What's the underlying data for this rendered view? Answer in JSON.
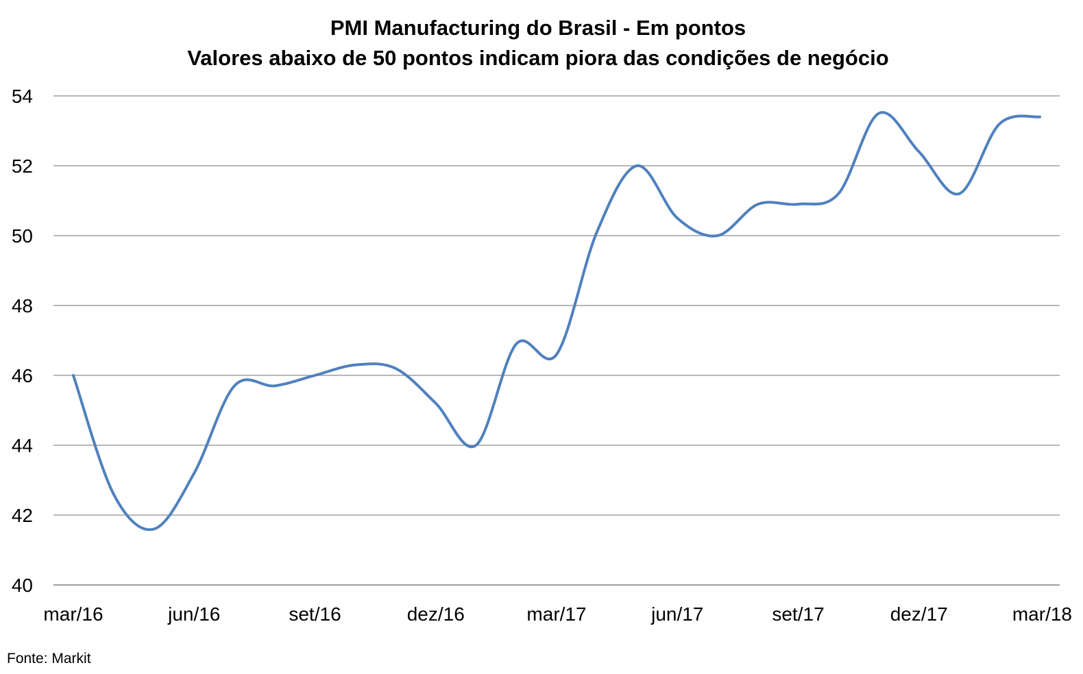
{
  "chart_data": {
    "type": "line",
    "title": "PMI Manufacturing do Brasil - Em pontos",
    "subtitle": "Valores abaixo de 50 pontos indicam piora das condições de negócio",
    "source": "Fonte: Markit",
    "xlabel": "",
    "ylabel": "",
    "ylim": [
      40,
      54
    ],
    "yticks": [
      40,
      42,
      44,
      46,
      48,
      50,
      52,
      54
    ],
    "xtick_labels": [
      "mar/16",
      "jun/16",
      "set/16",
      "dez/16",
      "mar/17",
      "jun/17",
      "set/17",
      "dez/17",
      "mar/18"
    ],
    "grid": true,
    "legend": "none",
    "line_color": "#4F81BD",
    "series": [
      {
        "x": [
          "mar/16",
          "abr/16",
          "mai/16",
          "jun/16",
          "jul/16",
          "ago/16",
          "set/16",
          "out/16",
          "nov/16",
          "dez/16",
          "jan/17",
          "fev/17",
          "mar/17",
          "abr/17",
          "mai/17",
          "jun/17",
          "jul/17",
          "ago/17",
          "set/17",
          "out/17",
          "nov/17",
          "dez/17",
          "jan/18",
          "fev/18",
          "mar/18"
        ],
        "values": [
          46.0,
          42.6,
          41.6,
          43.2,
          45.7,
          45.7,
          46.0,
          46.3,
          46.2,
          45.2,
          44.0,
          46.9,
          46.6,
          50.1,
          52.0,
          50.5,
          50.0,
          50.9,
          50.9,
          51.2,
          53.5,
          52.4,
          51.2,
          53.2,
          53.4
        ]
      }
    ]
  }
}
